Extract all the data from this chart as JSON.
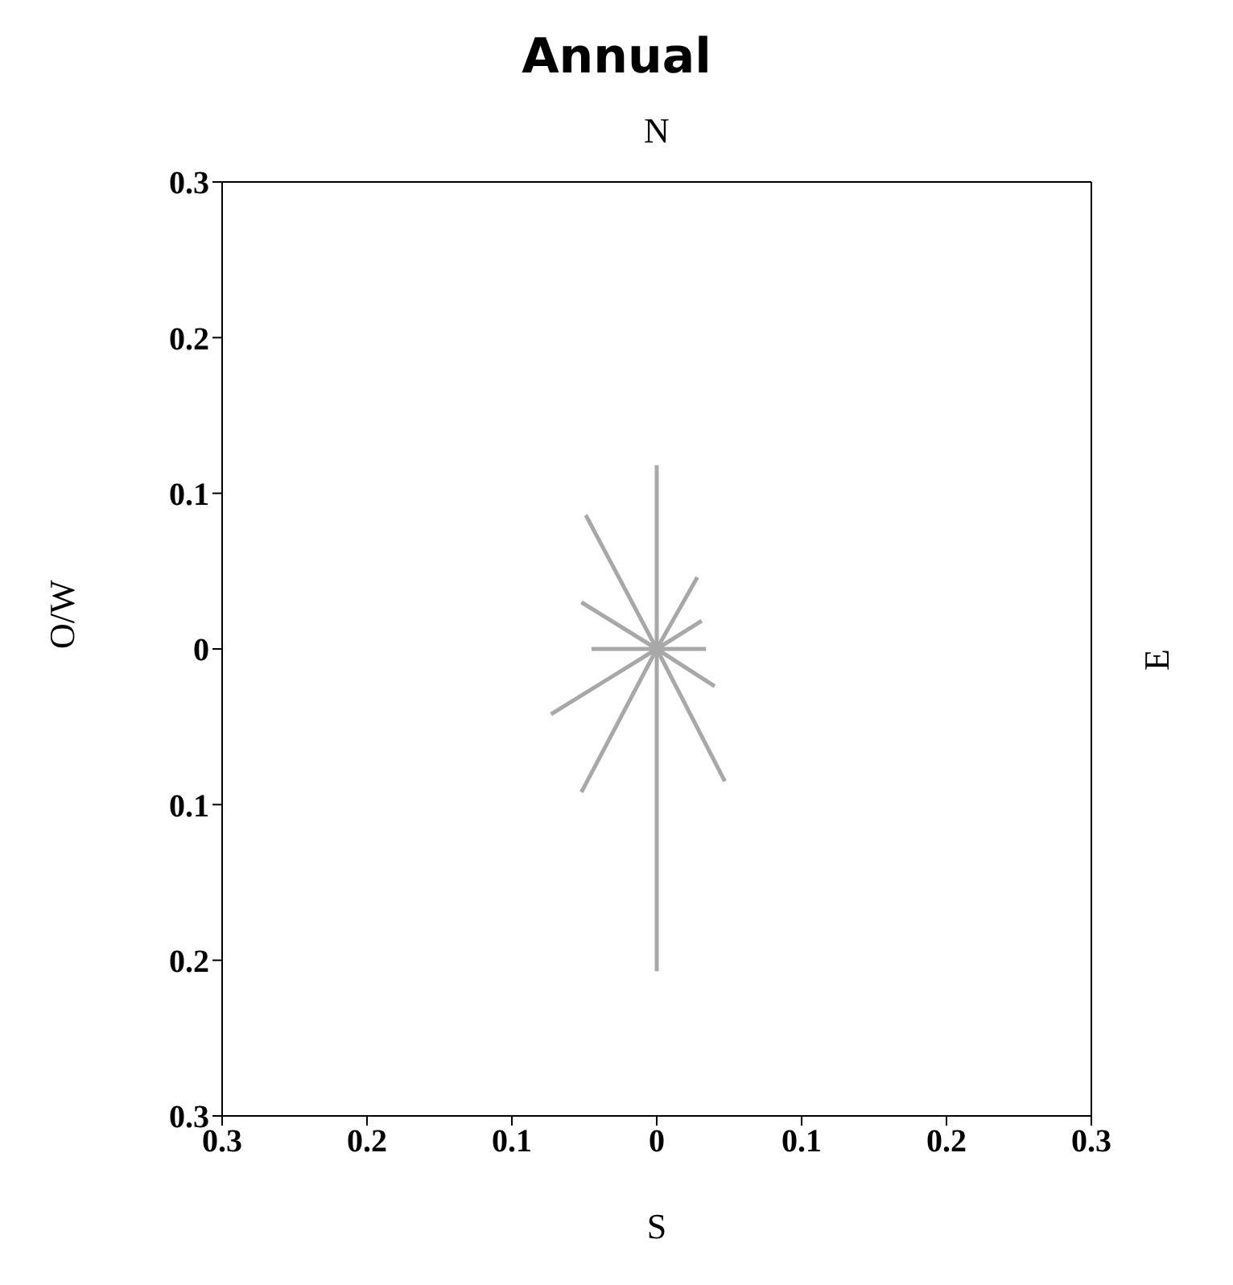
{
  "chart_data": {
    "type": "line",
    "title": "Annual",
    "xlabel": "S",
    "x2label": "N",
    "ylabel": "O/W",
    "y2label": "E",
    "xlim": [
      -0.3,
      0.3
    ],
    "ylim": [
      -0.3,
      0.3
    ],
    "xticks": [
      {
        "value": -0.3,
        "label": "0.3"
      },
      {
        "value": -0.2,
        "label": "0.2"
      },
      {
        "value": -0.1,
        "label": "0.1"
      },
      0,
      0.1,
      0.2,
      0.3
    ],
    "yticks": [
      {
        "value": -0.3,
        "label": "0.3"
      },
      {
        "value": -0.2,
        "label": "0.2"
      },
      {
        "value": -0.1,
        "label": "0.1"
      },
      0,
      0.1,
      0.2,
      0.3
    ],
    "marker": "none",
    "line_style": "solid",
    "series": [
      {
        "color": "#a8a8a8",
        "x": [
          0,
          0,
          0
        ],
        "values": [
          0.118,
          0,
          -0.207
        ]
      },
      {
        "color": "#a8a8a8",
        "x": [
          -0.052,
          0,
          0.028
        ],
        "values": [
          -0.092,
          0,
          0.046
        ]
      },
      {
        "color": "#a8a8a8",
        "x": [
          -0.073,
          0,
          0.031
        ],
        "values": [
          -0.042,
          0,
          0.018
        ]
      },
      {
        "color": "#a8a8a8",
        "x": [
          -0.045,
          0,
          0.034
        ],
        "values": [
          0,
          0,
          0
        ]
      },
      {
        "color": "#a8a8a8",
        "x": [
          -0.052,
          0,
          0.04
        ],
        "values": [
          0.03,
          0,
          -0.024
        ]
      },
      {
        "color": "#a8a8a8",
        "x": [
          -0.049,
          0,
          0.047
        ],
        "values": [
          0.086,
          0,
          -0.085
        ]
      }
    ]
  }
}
